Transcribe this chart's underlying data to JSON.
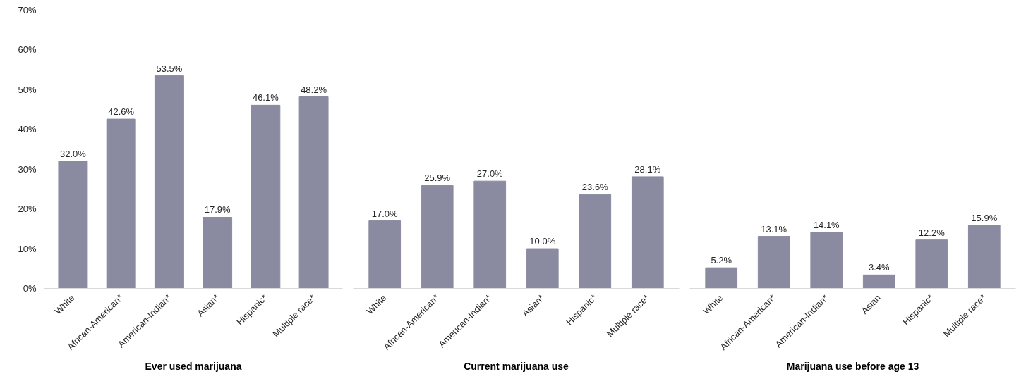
{
  "chart_data": [
    {
      "type": "bar",
      "xlabel": "Ever used marijuana",
      "categories": [
        "White",
        "African-American*",
        "American-Indian*",
        "Asian*",
        "Hispanic*",
        "Multiple race*"
      ],
      "values": [
        32.0,
        42.6,
        53.5,
        17.9,
        46.1,
        48.2
      ],
      "value_labels": [
        "32.0%",
        "42.6%",
        "53.5%",
        "17.9%",
        "46.1%",
        "48.2%"
      ],
      "color": "#8a8aa0",
      "ylim": [
        0,
        70
      ],
      "yticks": [
        {
          "value": 0,
          "label": "0%"
        },
        {
          "value": 10,
          "label": "10%"
        },
        {
          "value": 20,
          "label": "20%"
        },
        {
          "value": 30,
          "label": "30%"
        },
        {
          "value": 40,
          "label": "40%"
        },
        {
          "value": 50,
          "label": "50%"
        },
        {
          "value": 60,
          "label": "60%"
        },
        {
          "value": 70,
          "label": "70%"
        }
      ],
      "grid": false
    },
    {
      "type": "bar",
      "xlabel": "Current marijuana use",
      "categories": [
        "White",
        "African-American*",
        "American-Indian*",
        "Asian*",
        "Hispanic*",
        "Multiple race*"
      ],
      "values": [
        17.0,
        25.9,
        27.0,
        10.0,
        23.6,
        28.1
      ],
      "value_labels": [
        "17.0%",
        "25.9%",
        "27.0%",
        "10.0%",
        "23.6%",
        "28.1%"
      ],
      "color": "#8a8aa0",
      "ylim": [
        0,
        70
      ],
      "grid": false,
      "tick_labels": "x"
    },
    {
      "type": "bar",
      "xlabel": "Marijuana use before age 13",
      "categories": [
        "White",
        "African-American*",
        "American-Indian*",
        "Asian",
        "Hispanic*",
        "Multiple race*"
      ],
      "values": [
        5.2,
        13.1,
        14.1,
        3.4,
        12.2,
        15.9
      ],
      "value_labels": [
        "5.2%",
        "13.1%",
        "14.1%",
        "3.4%",
        "12.2%",
        "15.9%"
      ],
      "color": "#8a8aa0",
      "ylim": [
        0,
        70
      ],
      "grid": false,
      "tick_labels": "x"
    }
  ]
}
